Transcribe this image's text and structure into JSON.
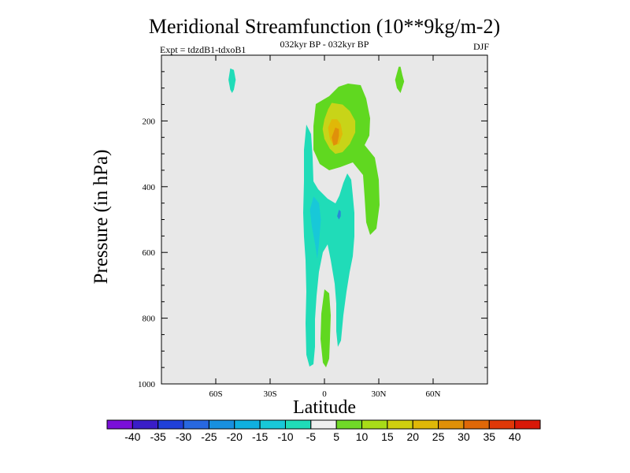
{
  "chart_data": {
    "type": "contour",
    "title": "Meridional Streamfunction (10**9kg/m-2)",
    "subtitle_left": "Expt = tdzdB1-tdxoB1",
    "subtitle_center": "032kyr BP - 032kyr BP",
    "subtitle_right": "DJF",
    "xlabel": "Latitude",
    "ylabel": "Pressure (in hPa)",
    "xlim": [
      -90,
      90
    ],
    "ylim": [
      1000,
      0
    ],
    "x_ticks": [
      {
        "value": -60,
        "label": "60S"
      },
      {
        "value": -30,
        "label": "30S"
      },
      {
        "value": 0,
        "label": "0"
      },
      {
        "value": 30,
        "label": "30N"
      },
      {
        "value": 60,
        "label": "60N"
      }
    ],
    "y_ticks": [
      {
        "value": 200,
        "label": "200"
      },
      {
        "value": 400,
        "label": "400"
      },
      {
        "value": 600,
        "label": "600"
      },
      {
        "value": 800,
        "label": "800"
      },
      {
        "value": 1000,
        "label": "1000"
      }
    ],
    "colorbar": {
      "labels": [
        "-40",
        "-35",
        "-30",
        "-25",
        "-20",
        "-15",
        "-10",
        "-5",
        "5",
        "10",
        "15",
        "20",
        "25",
        "30",
        "35",
        "40"
      ],
      "colors": [
        "#7a10d8",
        "#3a1ec8",
        "#2040d8",
        "#2868e0",
        "#1890e0",
        "#10b0e0",
        "#18c8d8",
        "#20dcb8",
        "#f0f0f0",
        "#70d828",
        "#a8dc18",
        "#d0d010",
        "#e0b808",
        "#e09008",
        "#e06808",
        "#e03808",
        "#d81808"
      ]
    },
    "regions": [
      {
        "name": "positive-15-to-20",
        "color": "#c8d418",
        "points": [
          [
            4,
            145
          ],
          [
            2,
            165
          ],
          [
            0,
            195
          ],
          [
            -1,
            225
          ],
          [
            0,
            255
          ],
          [
            3,
            285
          ],
          [
            6,
            300
          ],
          [
            10,
            295
          ],
          [
            14,
            270
          ],
          [
            17,
            235
          ],
          [
            17,
            200
          ],
          [
            14,
            170
          ],
          [
            10,
            150
          ]
        ]
      },
      {
        "name": "positive-20-to-25",
        "color": "#e0b808",
        "points": [
          [
            4,
            195
          ],
          [
            2,
            220
          ],
          [
            3,
            255
          ],
          [
            5,
            275
          ],
          [
            8,
            270
          ],
          [
            10,
            240
          ],
          [
            9,
            210
          ],
          [
            7,
            195
          ]
        ]
      },
      {
        "name": "positive-25-to-30",
        "color": "#e0900a",
        "points": [
          [
            6,
            220
          ],
          [
            4,
            250
          ],
          [
            5,
            275
          ],
          [
            7,
            270
          ],
          [
            8,
            245
          ],
          [
            8,
            225
          ]
        ]
      },
      {
        "name": "negative-5-to-10-lower-core",
        "color": "#18c8d8",
        "points": [
          [
            -6,
            430
          ],
          [
            -8,
            470
          ],
          [
            -7,
            520
          ],
          [
            -5,
            580
          ],
          [
            -4,
            620
          ],
          [
            -3,
            570
          ],
          [
            -2,
            500
          ],
          [
            -3,
            450
          ]
        ]
      },
      {
        "name": "negative-10-to-15-core",
        "color": "#2888d8",
        "points": [
          [
            8,
            470
          ],
          [
            7,
            490
          ],
          [
            8,
            500
          ],
          [
            9,
            490
          ],
          [
            9,
            475
          ]
        ]
      },
      {
        "name": "positive-northern-upper-cell",
        "color": "#60d820",
        "points": [
          [
            41,
            35
          ],
          [
            42,
            35
          ],
          [
            43,
            60
          ],
          [
            44,
            80
          ],
          [
            42,
            115
          ],
          [
            40,
            100
          ],
          [
            39,
            75
          ]
        ]
      },
      {
        "name": "negative-southern-upper-cell",
        "color": "#20dcb8",
        "points": [
          [
            -52,
            40
          ],
          [
            -50,
            45
          ],
          [
            -49,
            75
          ],
          [
            -50,
            105
          ],
          [
            -51,
            115
          ],
          [
            -52,
            105
          ],
          [
            -53,
            75
          ]
        ]
      }
    ]
  }
}
